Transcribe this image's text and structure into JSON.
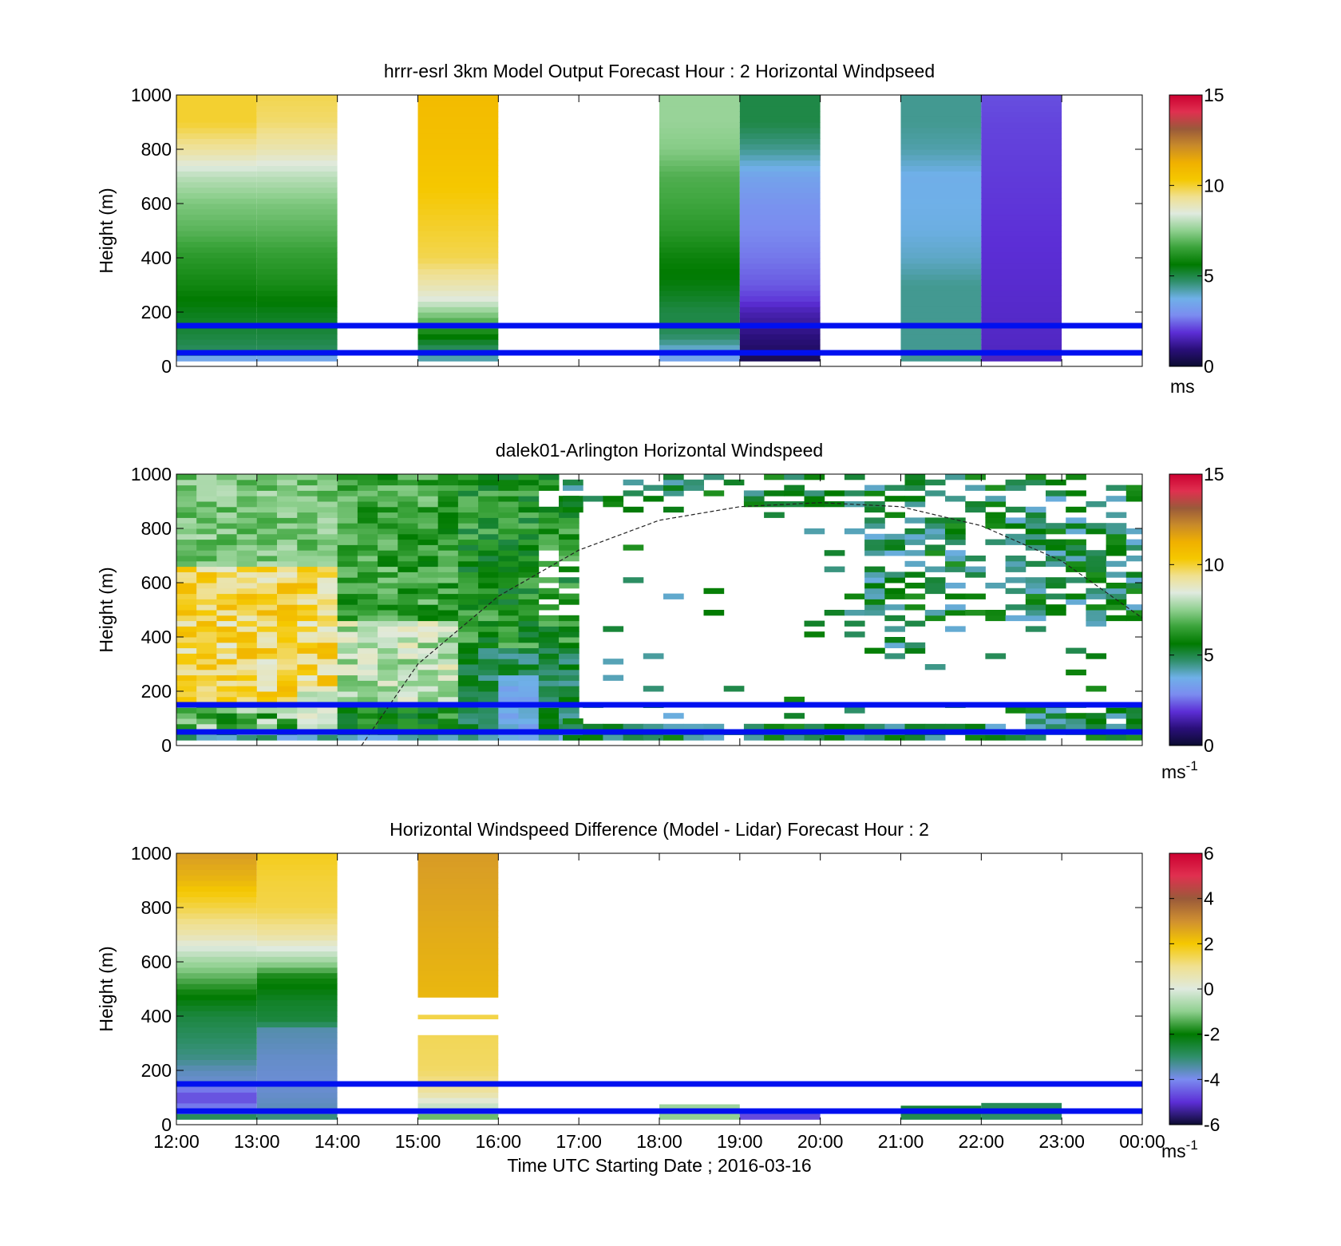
{
  "colors": {
    "blue_line": "#0010f0",
    "speed_colormap": [
      "#0b0b30",
      "#2a0f7a",
      "#5c2ed6",
      "#7b8cf0",
      "#6fb0e8",
      "#2f8f6a",
      "#007a00",
      "#3aa33a",
      "#8fd08f",
      "#dfeadf",
      "#f0e090",
      "#f5c800",
      "#f0b000",
      "#c88a2a",
      "#9a5a3a",
      "#e03050",
      "#cc0030"
    ],
    "diff_colormap": [
      "#0b0b30",
      "#5c2ed6",
      "#7b8cf0",
      "#2f8f6a",
      "#007a00",
      "#8fd08f",
      "#dfeadf",
      "#f0e090",
      "#f5c800",
      "#d09030",
      "#9a5a3a",
      "#e03050",
      "#cc0030"
    ]
  },
  "chart_data": [
    {
      "type": "heatmap",
      "title": "hrrr-esrl 3km Model Output   Forecast Hour : 2 Horizontal Windpseed",
      "ylabel": "Height (m)",
      "ylim": [
        0,
        1000
      ],
      "yticks": [
        "0",
        "200",
        "400",
        "600",
        "800",
        "1000"
      ],
      "xlim": [
        12,
        24
      ],
      "xticks": [
        12,
        13,
        14,
        15,
        16,
        17,
        18,
        19,
        20,
        21,
        22,
        23,
        24
      ],
      "colorbar": {
        "range": [
          0,
          15
        ],
        "ticks": [
          "0",
          "5",
          "10",
          "15"
        ],
        "unit": "ms"
      },
      "reference_lines_m": [
        50,
        150
      ],
      "columns": [
        {
          "t0": 12,
          "t1": 13,
          "profile": [
            [
              0,
              2.5
            ],
            [
              30,
              3.5
            ],
            [
              60,
              4.8
            ],
            [
              100,
              5.0
            ],
            [
              150,
              5.2
            ],
            [
              200,
              5.4
            ],
            [
              300,
              5.9
            ],
            [
              400,
              6.3
            ],
            [
              500,
              6.9
            ],
            [
              600,
              7.3
            ],
            [
              700,
              8.0
            ],
            [
              800,
              9.2
            ],
            [
              900,
              10.0
            ],
            [
              1000,
              10.0
            ]
          ]
        },
        {
          "t0": 13,
          "t1": 14,
          "profile": [
            [
              0,
              2.5
            ],
            [
              30,
              3.5
            ],
            [
              60,
              4.8
            ],
            [
              100,
              5.0
            ],
            [
              150,
              5.2
            ],
            [
              200,
              5.4
            ],
            [
              300,
              6.0
            ],
            [
              400,
              6.4
            ],
            [
              500,
              6.9
            ],
            [
              600,
              7.3
            ],
            [
              700,
              8.0
            ],
            [
              800,
              9.0
            ],
            [
              900,
              9.6
            ],
            [
              1000,
              9.8
            ]
          ]
        },
        {
          "t0": 15,
          "t1": 16,
          "profile": [
            [
              0,
              3.5
            ],
            [
              30,
              4.2
            ],
            [
              60,
              4.7
            ],
            [
              100,
              5.4
            ],
            [
              150,
              6.5
            ],
            [
              200,
              7.5
            ],
            [
              250,
              8.5
            ],
            [
              300,
              9.0
            ],
            [
              400,
              9.8
            ],
            [
              600,
              10.2
            ],
            [
              800,
              10.6
            ],
            [
              1000,
              10.8
            ]
          ]
        },
        {
          "t0": 18,
          "t1": 19,
          "profile": [
            [
              0,
              3.0
            ],
            [
              30,
              3.4
            ],
            [
              60,
              3.8
            ],
            [
              100,
              4.6
            ],
            [
              150,
              5.0
            ],
            [
              200,
              5.0
            ],
            [
              300,
              5.5
            ],
            [
              400,
              5.8
            ],
            [
              500,
              6.3
            ],
            [
              600,
              6.6
            ],
            [
              700,
              6.8
            ],
            [
              800,
              7.4
            ],
            [
              900,
              7.6
            ],
            [
              1000,
              7.6
            ]
          ]
        },
        {
          "t0": 19,
          "t1": 20,
          "profile": [
            [
              0,
              0.3
            ],
            [
              50,
              0.6
            ],
            [
              100,
              0.9
            ],
            [
              150,
              1.2
            ],
            [
              200,
              1.5
            ],
            [
              250,
              2.0
            ],
            [
              300,
              2.3
            ],
            [
              400,
              2.6
            ],
            [
              500,
              2.8
            ],
            [
              600,
              3.0
            ],
            [
              700,
              3.4
            ],
            [
              800,
              4.4
            ],
            [
              900,
              5.0
            ],
            [
              1000,
              5.0
            ]
          ]
        },
        {
          "t0": 21,
          "t1": 22,
          "profile": [
            [
              0,
              3.5
            ],
            [
              30,
              4.4
            ],
            [
              100,
              4.4
            ],
            [
              300,
              4.4
            ],
            [
              400,
              4.0
            ],
            [
              500,
              3.8
            ],
            [
              700,
              3.7
            ],
            [
              800,
              4.2
            ],
            [
              900,
              4.4
            ],
            [
              1000,
              4.4
            ]
          ]
        },
        {
          "t0": 22,
          "t1": 23,
          "profile": [
            [
              0,
              1.6
            ],
            [
              100,
              1.7
            ],
            [
              300,
              1.8
            ],
            [
              500,
              1.9
            ],
            [
              700,
              2.0
            ],
            [
              900,
              2.1
            ],
            [
              1000,
              2.2
            ]
          ]
        }
      ]
    },
    {
      "type": "heatmap",
      "title": "dalek01-Arlington  Horizontal Windspeed",
      "ylabel": "Height (m)",
      "ylim": [
        0,
        1000
      ],
      "yticks": [
        "0",
        "200",
        "400",
        "600",
        "800",
        "1000"
      ],
      "xlim": [
        12,
        24
      ],
      "xticks": [
        12,
        13,
        14,
        15,
        16,
        17,
        18,
        19,
        20,
        21,
        22,
        23,
        24
      ],
      "colorbar": {
        "range": [
          0,
          15
        ],
        "ticks": [
          "0",
          "5",
          "10",
          "15"
        ],
        "unit": "ms",
        "unit_superscript": "-1"
      },
      "reference_lines_m": [
        50,
        150
      ],
      "boundary_layer_curve": [
        [
          14.3,
          0
        ],
        [
          15.0,
          300
        ],
        [
          16.0,
          550
        ],
        [
          17.0,
          720
        ],
        [
          18.0,
          830
        ],
        [
          19.0,
          880
        ],
        [
          20.0,
          895
        ],
        [
          21.0,
          880
        ],
        [
          22.0,
          810
        ],
        [
          23.0,
          680
        ],
        [
          24.0,
          470
        ]
      ],
      "dense_region": {
        "t0": 12,
        "t1": 16.8
      },
      "sparse_region": {
        "t0": 16.8,
        "t1": 24
      }
    },
    {
      "type": "heatmap",
      "title": "Horizontal Windspeed Difference (Model - Lidar) Forecast Hour : 2",
      "ylabel": "Height (m)",
      "xlabel": "Time UTC  Starting Date ; 2016-03-16",
      "ylim": [
        0,
        1000
      ],
      "yticks": [
        "0",
        "200",
        "400",
        "600",
        "800",
        "1000"
      ],
      "xlim": [
        12,
        24
      ],
      "xticks": [
        12,
        13,
        14,
        15,
        16,
        17,
        18,
        19,
        20,
        21,
        22,
        23,
        24
      ],
      "xticklabels": [
        "12:00",
        "13:00",
        "14:00",
        "15:00",
        "16:00",
        "17:00",
        "18:00",
        "19:00",
        "20:00",
        "21:00",
        "22:00",
        "23:00",
        "00:00"
      ],
      "colorbar": {
        "range": [
          -6,
          6
        ],
        "ticks": [
          "-6",
          "-4",
          "-2",
          "0",
          "2",
          "4",
          "6"
        ],
        "unit": "ms",
        "unit_superscript": "-1"
      },
      "reference_lines_m": [
        50,
        150
      ],
      "columns": [
        {
          "t0": 12,
          "t1": 13,
          "profile": [
            [
              20,
              -2.5
            ],
            [
              60,
              -4.0
            ],
            [
              100,
              -4.8
            ],
            [
              150,
              -3.8
            ],
            [
              200,
              -3.6
            ],
            [
              250,
              -3.2
            ],
            [
              300,
              -3.0
            ],
            [
              400,
              -2.6
            ],
            [
              500,
              -1.8
            ],
            [
              600,
              -0.8
            ],
            [
              700,
              0.6
            ],
            [
              800,
              1.5
            ],
            [
              900,
              2.3
            ],
            [
              1000,
              2.8
            ]
          ]
        },
        {
          "t0": 13,
          "t1": 14,
          "profile": [
            [
              20,
              -3.0
            ],
            [
              60,
              -3.6
            ],
            [
              150,
              -3.8
            ],
            [
              250,
              -3.7
            ],
            [
              350,
              -3.5
            ],
            [
              380,
              -2.6
            ],
            [
              450,
              -2.4
            ],
            [
              550,
              -1.8
            ],
            [
              620,
              -0.5
            ],
            [
              700,
              0.8
            ],
            [
              800,
              1.5
            ],
            [
              900,
              1.6
            ],
            [
              1000,
              1.8
            ]
          ]
        },
        {
          "t0": 15,
          "t1": 16,
          "segments": [
            {
              "y0": 20,
              "y1": 330,
              "profile": [
                [
                  20,
                  -1.5
                ],
                [
                  60,
                  -0.5
                ],
                [
                  120,
                  0.8
                ],
                [
                  200,
                  1.3
                ],
                [
                  330,
                  1.4
                ]
              ]
            },
            {
              "y0": 390,
              "y1": 405,
              "profile": [
                [
                  390,
                  1.5
                ],
                [
                  405,
                  1.5
                ]
              ]
            },
            {
              "y0": 470,
              "y1": 1000,
              "profile": [
                [
                  470,
                  2.3
                ],
                [
                  700,
                  2.5
                ],
                [
                  1000,
                  2.8
                ]
              ]
            }
          ]
        },
        {
          "t0": 18,
          "t1": 19,
          "segments": [
            {
              "y0": 20,
              "y1": 75,
              "profile": [
                [
                  20,
                  -1.0
                ],
                [
                  75,
                  -0.8
                ]
              ]
            }
          ]
        },
        {
          "t0": 19,
          "t1": 20,
          "segments": [
            {
              "y0": 20,
              "y1": 50,
              "profile": [
                [
                  20,
                  -4.8
                ],
                [
                  50,
                  -4.5
                ]
              ]
            }
          ]
        },
        {
          "t0": 21,
          "t1": 22,
          "segments": [
            {
              "y0": 20,
              "y1": 70,
              "profile": [
                [
                  20,
                  -2.8
                ],
                [
                  70,
                  -2.5
                ]
              ]
            }
          ]
        },
        {
          "t0": 22,
          "t1": 23,
          "segments": [
            {
              "y0": 20,
              "y1": 80,
              "profile": [
                [
                  20,
                  -3.0
                ],
                [
                  80,
                  -2.8
                ]
              ]
            }
          ]
        }
      ]
    }
  ]
}
